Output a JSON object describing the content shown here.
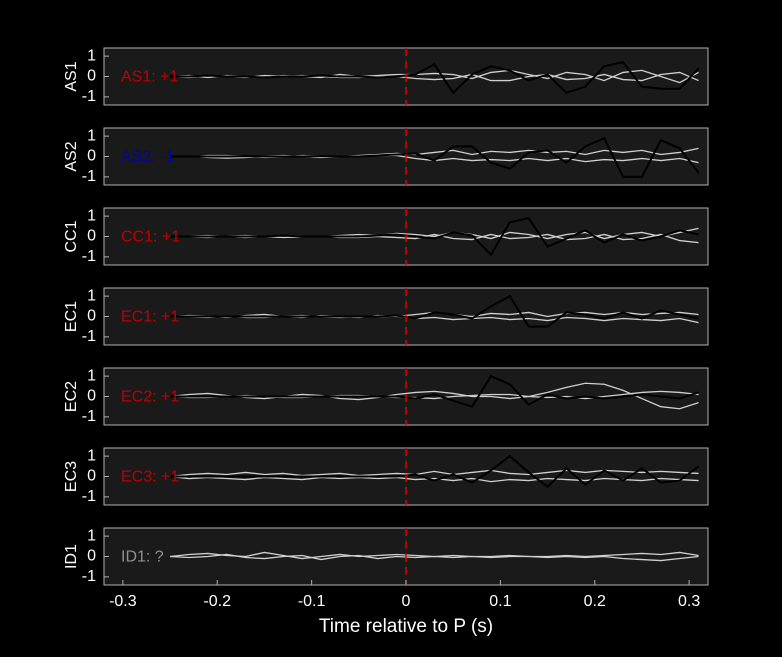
{
  "chart_data": [
    {
      "type": "line",
      "ylabel": "AS1",
      "annotation": "AS1: +1",
      "annotation_color": "#c00000",
      "x": [
        -0.25,
        -0.23,
        -0.21,
        -0.19,
        -0.17,
        -0.15,
        -0.13,
        -0.11,
        -0.09,
        -0.07,
        -0.05,
        -0.03,
        -0.01,
        0.01,
        0.03,
        0.05,
        0.07,
        0.09,
        0.11,
        0.13,
        0.15,
        0.17,
        0.19,
        0.21,
        0.23,
        0.25,
        0.27,
        0.29,
        0.31
      ],
      "series": [
        {
          "color": "#d0d0d0",
          "values": [
            0,
            0.05,
            -0.05,
            0.05,
            0,
            -0.05,
            0.05,
            0,
            -0.05,
            0.1,
            0,
            0.05,
            0.1,
            0.1,
            0.15,
            0.1,
            -0.1,
            0.2,
            0.3,
            0.1,
            -0.1,
            0.2,
            0.1,
            -0.2,
            0.2,
            0.3,
            0,
            -0.3,
            0.2
          ]
        },
        {
          "color": "#d0d0d0",
          "values": [
            0,
            -0.05,
            0.05,
            0,
            -0.05,
            0.05,
            0,
            0.05,
            0,
            -0.05,
            -0.05,
            0,
            0,
            -0.1,
            -0.15,
            -0.1,
            0.1,
            -0.2,
            -0.2,
            0,
            0.1,
            -0.15,
            -0.1,
            0.1,
            -0.15,
            -0.2,
            0.1,
            0.2,
            -0.2
          ]
        },
        {
          "color": "#000000",
          "values": [
            0,
            0,
            0.05,
            0,
            0,
            -0.05,
            0,
            0,
            0.05,
            0,
            0,
            -0.05,
            0,
            0.1,
            0.6,
            -0.8,
            0.1,
            0.5,
            0.3,
            -0.2,
            0.1,
            -0.8,
            -0.5,
            0.5,
            0.7,
            -0.5,
            -0.6,
            -0.6,
            0.4
          ]
        }
      ],
      "xlim": [
        -0.32,
        0.32
      ],
      "ylim": [
        -1.4,
        1.4
      ],
      "yticks": [
        -1,
        0,
        1
      ]
    },
    {
      "type": "line",
      "ylabel": "AS2",
      "annotation": "AS2: -1",
      "annotation_color": "#0000c0",
      "x": [
        -0.25,
        -0.23,
        -0.21,
        -0.19,
        -0.17,
        -0.15,
        -0.13,
        -0.11,
        -0.09,
        -0.07,
        -0.05,
        -0.03,
        -0.01,
        0.01,
        0.03,
        0.05,
        0.07,
        0.09,
        0.11,
        0.13,
        0.15,
        0.17,
        0.19,
        0.21,
        0.23,
        0.25,
        0.27,
        0.29,
        0.31
      ],
      "series": [
        {
          "color": "#d0d0d0",
          "values": [
            0,
            0.02,
            -0.05,
            -0.08,
            -0.05,
            0.02,
            0.05,
            0,
            -0.05,
            0,
            0.05,
            0.1,
            0.15,
            0.1,
            0.2,
            0.3,
            0.1,
            0.25,
            0.2,
            0.3,
            0.2,
            0.25,
            0.1,
            0.3,
            0.2,
            0.3,
            0.1,
            0.2,
            0.4
          ]
        },
        {
          "color": "#d0d0d0",
          "values": [
            0,
            -0.02,
            0.05,
            0.05,
            0.02,
            -0.05,
            -0.02,
            0.05,
            0.02,
            -0.02,
            0,
            0.05,
            0.05,
            -0.1,
            -0.2,
            -0.1,
            -0.2,
            -0.15,
            -0.2,
            -0.1,
            -0.2,
            -0.1,
            -0.25,
            -0.15,
            -0.2,
            -0.1,
            -0.2,
            -0.1,
            -0.3
          ]
        },
        {
          "color": "#000000",
          "values": [
            0,
            0,
            0,
            0,
            0.02,
            0,
            0,
            0,
            0.02,
            0,
            0,
            0.05,
            0.1,
            0.15,
            -0.2,
            0.5,
            0.5,
            -0.3,
            -0.6,
            0.2,
            0.3,
            -0.3,
            0.5,
            0.9,
            -1.0,
            -1.0,
            0.8,
            0.4,
            -0.8
          ]
        }
      ],
      "xlim": [
        -0.32,
        0.32
      ],
      "ylim": [
        -1.4,
        1.4
      ],
      "yticks": [
        -1,
        0,
        1
      ]
    },
    {
      "type": "line",
      "ylabel": "CC1",
      "annotation": "CC1: +1",
      "annotation_color": "#c00000",
      "x": [
        -0.25,
        -0.23,
        -0.21,
        -0.19,
        -0.17,
        -0.15,
        -0.13,
        -0.11,
        -0.09,
        -0.07,
        -0.05,
        -0.03,
        -0.01,
        0.01,
        0.03,
        0.05,
        0.07,
        0.09,
        0.11,
        0.13,
        0.15,
        0.17,
        0.19,
        0.21,
        0.23,
        0.25,
        0.27,
        0.29,
        0.31
      ],
      "series": [
        {
          "color": "#d0d0d0",
          "values": [
            0,
            0.02,
            0.05,
            0,
            -0.05,
            0,
            0.05,
            0.02,
            0,
            0.05,
            0.1,
            0.05,
            0.15,
            0.1,
            0,
            0.2,
            0.1,
            -0.1,
            0.2,
            0.1,
            -0.1,
            0.1,
            0.2,
            -0.1,
            0.1,
            0.2,
            0,
            0.2,
            0.4
          ]
        },
        {
          "color": "#d0d0d0",
          "values": [
            0,
            -0.02,
            -0.05,
            0.02,
            0.05,
            0,
            -0.05,
            -0.02,
            0.02,
            -0.05,
            -0.05,
            0,
            -0.05,
            -0.1,
            0.1,
            -0.1,
            -0.15,
            0.1,
            -0.1,
            -0.05,
            0.1,
            -0.15,
            -0.1,
            0.1,
            -0.15,
            -0.1,
            0.1,
            -0.2,
            -0.3
          ]
        },
        {
          "color": "#000000",
          "values": [
            0,
            0,
            0,
            0,
            0,
            0,
            0.05,
            0,
            0,
            0,
            0,
            0.05,
            0.1,
            0,
            -0.1,
            0.2,
            0.05,
            -0.9,
            0.7,
            0.9,
            -0.5,
            -0.1,
            0.3,
            -0.3,
            0.1,
            -0.2,
            0,
            0.3,
            0.1
          ]
        }
      ],
      "xlim": [
        -0.32,
        0.32
      ],
      "ylim": [
        -1.4,
        1.4
      ],
      "yticks": [
        -1,
        0,
        1
      ]
    },
    {
      "type": "line",
      "ylabel": "EC1",
      "annotation": "EC1: +1",
      "annotation_color": "#c00000",
      "x": [
        -0.25,
        -0.23,
        -0.21,
        -0.19,
        -0.17,
        -0.15,
        -0.13,
        -0.11,
        -0.09,
        -0.07,
        -0.05,
        -0.03,
        -0.01,
        0.01,
        0.03,
        0.05,
        0.07,
        0.09,
        0.11,
        0.13,
        0.15,
        0.17,
        0.19,
        0.21,
        0.23,
        0.25,
        0.27,
        0.29,
        0.31
      ],
      "series": [
        {
          "color": "#d0d0d0",
          "values": [
            0,
            0.05,
            0.02,
            -0.05,
            0.05,
            0.1,
            0,
            -0.05,
            0.05,
            0,
            -0.05,
            0.05,
            0,
            0.1,
            0.2,
            0.1,
            0,
            0.15,
            0.1,
            0.2,
            0,
            0.15,
            0.2,
            0.1,
            0.2,
            0.1,
            0.15,
            0.2,
            0.1
          ]
        },
        {
          "color": "#d0d0d0",
          "values": [
            0,
            -0.02,
            -0.05,
            0.02,
            -0.05,
            -0.05,
            0.02,
            0.05,
            -0.02,
            -0.05,
            0,
            -0.02,
            0.02,
            -0.1,
            -0.05,
            -0.15,
            -0.1,
            -0.05,
            -0.15,
            -0.1,
            -0.2,
            -0.05,
            -0.1,
            -0.2,
            -0.1,
            -0.15,
            -0.2,
            -0.1,
            -0.3
          ]
        },
        {
          "color": "#000000",
          "values": [
            0,
            0,
            0,
            0,
            0,
            0,
            0,
            0,
            0,
            0,
            0,
            0,
            0.05,
            -0.1,
            0.2,
            0.1,
            -0.1,
            0.5,
            1.0,
            -0.5,
            -0.5,
            0.2,
            0.1,
            -0.1,
            0.2,
            -0.1,
            0.3,
            0.1,
            -0.1
          ]
        }
      ],
      "xlim": [
        -0.32,
        0.32
      ],
      "ylim": [
        -1.4,
        1.4
      ],
      "yticks": [
        -1,
        0,
        1
      ]
    },
    {
      "type": "line",
      "ylabel": "EC2",
      "annotation": "EC2: +1",
      "annotation_color": "#c00000",
      "x": [
        -0.25,
        -0.23,
        -0.21,
        -0.19,
        -0.17,
        -0.15,
        -0.13,
        -0.11,
        -0.09,
        -0.07,
        -0.05,
        -0.03,
        -0.01,
        0.01,
        0.03,
        0.05,
        0.07,
        0.09,
        0.11,
        0.13,
        0.15,
        0.17,
        0.19,
        0.21,
        0.23,
        0.25,
        0.27,
        0.29,
        0.31
      ],
      "series": [
        {
          "color": "#d0d0d0",
          "values": [
            0,
            0.1,
            0.15,
            0.05,
            -0.05,
            -0.1,
            0,
            0.1,
            0.05,
            -0.1,
            -0.15,
            -0.05,
            0.1,
            0.2,
            0.25,
            0.15,
            0,
            0,
            -0.1,
            0,
            0.2,
            0.45,
            0.65,
            0.6,
            0.3,
            -0.1,
            -0.5,
            -0.6,
            -0.3
          ]
        },
        {
          "color": "#d0d0d0",
          "values": [
            0,
            -0.05,
            -0.05,
            0,
            0.05,
            0,
            -0.05,
            -0.05,
            0,
            0.05,
            0.05,
            0,
            -0.05,
            -0.05,
            -0.1,
            0,
            0.05,
            0.1,
            0.1,
            0,
            -0.05,
            0,
            -0.1,
            0,
            0.1,
            0.2,
            0.25,
            0.2,
            0.1
          ]
        },
        {
          "color": "#000000",
          "values": [
            0,
            0,
            0,
            0,
            0,
            0,
            0,
            0,
            0,
            0,
            0,
            0,
            0,
            -0.1,
            0.1,
            -0.2,
            -0.5,
            1.0,
            0.6,
            -0.4,
            0.1,
            -0.1,
            0,
            -0.1,
            0,
            0.1,
            0,
            -0.1,
            0.2
          ]
        }
      ],
      "xlim": [
        -0.32,
        0.32
      ],
      "ylim": [
        -1.4,
        1.4
      ],
      "yticks": [
        -1,
        0,
        1
      ]
    },
    {
      "type": "line",
      "ylabel": "EC3",
      "annotation": "EC3: +1",
      "annotation_color": "#c00000",
      "x": [
        -0.25,
        -0.23,
        -0.21,
        -0.19,
        -0.17,
        -0.15,
        -0.13,
        -0.11,
        -0.09,
        -0.07,
        -0.05,
        -0.03,
        -0.01,
        0.01,
        0.03,
        0.05,
        0.07,
        0.09,
        0.11,
        0.13,
        0.15,
        0.17,
        0.19,
        0.21,
        0.23,
        0.25,
        0.27,
        0.29,
        0.31
      ],
      "series": [
        {
          "color": "#d0d0d0",
          "values": [
            0,
            0.1,
            0.15,
            0.1,
            0.2,
            0.1,
            0.15,
            0.05,
            0.1,
            0.15,
            0.05,
            0.1,
            0.15,
            0.1,
            0.25,
            0.1,
            0.2,
            0.3,
            0.15,
            0.1,
            0.2,
            0.3,
            0.2,
            0.3,
            0.25,
            0.2,
            0.25,
            0.2,
            0.15
          ]
        },
        {
          "color": "#d0d0d0",
          "values": [
            0,
            -0.1,
            -0.05,
            -0.1,
            -0.15,
            -0.05,
            -0.1,
            -0.15,
            -0.05,
            -0.1,
            -0.05,
            -0.1,
            -0.05,
            -0.15,
            -0.1,
            -0.2,
            -0.1,
            -0.25,
            -0.15,
            -0.2,
            -0.1,
            -0.15,
            -0.2,
            -0.1,
            -0.15,
            -0.2,
            -0.1,
            -0.15,
            -0.2
          ]
        },
        {
          "color": "#000000",
          "values": [
            0,
            0,
            0,
            0,
            0,
            0,
            0,
            0,
            0,
            0,
            0,
            0,
            0,
            0.1,
            -0.2,
            0.1,
            -0.3,
            0.3,
            1.0,
            0.2,
            -0.5,
            0.4,
            -0.4,
            0.3,
            -0.2,
            0.4,
            -0.3,
            -0.2,
            0.5
          ]
        }
      ],
      "xlim": [
        -0.32,
        0.32
      ],
      "ylim": [
        -1.4,
        1.4
      ],
      "yticks": [
        -1,
        0,
        1
      ]
    },
    {
      "type": "line",
      "ylabel": "ID1",
      "annotation": "ID1: ?",
      "annotation_color": "#909090",
      "x": [
        -0.25,
        -0.23,
        -0.21,
        -0.19,
        -0.17,
        -0.15,
        -0.13,
        -0.11,
        -0.09,
        -0.07,
        -0.05,
        -0.03,
        -0.01,
        0.01,
        0.03,
        0.05,
        0.07,
        0.09,
        0.11,
        0.13,
        0.15,
        0.17,
        0.19,
        0.21,
        0.23,
        0.25,
        0.27,
        0.29,
        0.31
      ],
      "series": [
        {
          "color": "#d0d0d0",
          "values": [
            0,
            0.1,
            0.15,
            0.05,
            0,
            0.2,
            0.05,
            -0.1,
            0,
            0.1,
            0,
            0.05,
            0.1,
            0.05,
            0,
            0.05,
            0,
            0,
            0.05,
            0,
            0,
            0.05,
            0,
            0.05,
            0.1,
            0.15,
            0.1,
            0.2,
            0.05
          ]
        },
        {
          "color": "#d0d0d0",
          "values": [
            0,
            -0.05,
            0,
            0.1,
            -0.05,
            -0.1,
            0,
            0.05,
            -0.15,
            0,
            0.05,
            -0.1,
            0,
            -0.05,
            0,
            -0.05,
            0,
            -0.05,
            0,
            0,
            -0.05,
            0,
            -0.05,
            0,
            -0.1,
            -0.15,
            -0.2,
            -0.1,
            0
          ]
        }
      ],
      "xlim": [
        -0.32,
        0.32
      ],
      "ylim": [
        -1.4,
        1.4
      ],
      "yticks": [
        -1,
        0,
        1
      ],
      "xticks": [
        -0.3,
        -0.2,
        -0.1,
        0,
        0.1,
        0.2,
        0.3
      ],
      "xlabel": "Time relative to P (s)"
    }
  ]
}
